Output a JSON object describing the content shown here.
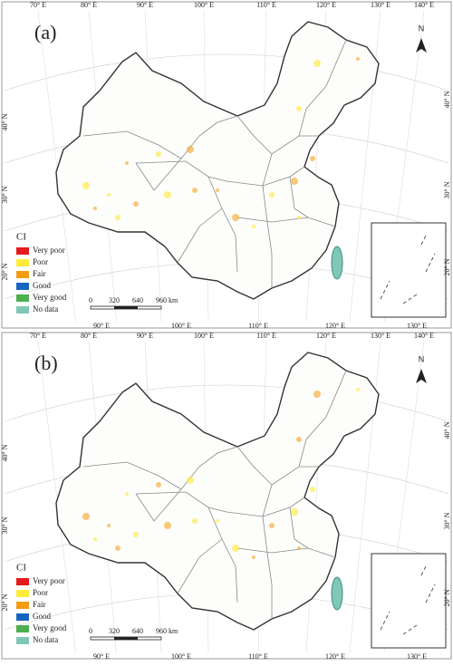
{
  "panels": [
    {
      "label": "(a)",
      "top_lon": [
        "70° E",
        "80° E",
        "90° E",
        "100° E",
        "110° E",
        "120° E",
        "130° E",
        "140° E"
      ],
      "bottom_lon": [
        "90° E",
        "100° E",
        "110° E",
        "120° E",
        "130° E"
      ],
      "left_lat": [
        "40° N",
        "30° N",
        "20° N"
      ],
      "right_lat": [
        "40° N",
        "30° N",
        "20° N"
      ],
      "north": "N",
      "legend": {
        "title": "CI",
        "items": [
          {
            "label": "Very poor",
            "color": "#e41a1c"
          },
          {
            "label": "Poor",
            "color": "#ffeb3b"
          },
          {
            "label": "Fair",
            "color": "#f39c12"
          },
          {
            "label": "Good",
            "color": "#1565c0"
          },
          {
            "label": "Very good",
            "color": "#4caf50"
          },
          {
            "label": "No data",
            "color": "#7fc8b8"
          }
        ]
      },
      "scale_bar": [
        "0",
        "320",
        "640",
        "960 km"
      ]
    },
    {
      "label": "(b)",
      "top_lon": [
        "70° E",
        "80° E",
        "90° E",
        "100° E",
        "110° E",
        "120° E",
        "130° E",
        "140° E"
      ],
      "bottom_lon": [
        "90° E",
        "100° E",
        "110° E",
        "120° E",
        "130° E"
      ],
      "left_lat": [
        "40° N",
        "30° N",
        "20° N"
      ],
      "right_lat": [
        "40° N",
        "30° N",
        "20° N"
      ],
      "north": "N",
      "legend": {
        "title": "CI",
        "items": [
          {
            "label": "Very poor",
            "color": "#e41a1c"
          },
          {
            "label": "Poor",
            "color": "#ffeb3b"
          },
          {
            "label": "Fair",
            "color": "#f39c12"
          },
          {
            "label": "Good",
            "color": "#1565c0"
          },
          {
            "label": "Very good",
            "color": "#4caf50"
          },
          {
            "label": "No data",
            "color": "#7fc8b8"
          }
        ]
      },
      "scale_bar": [
        "0",
        "320",
        "640",
        "960 km"
      ]
    }
  ]
}
